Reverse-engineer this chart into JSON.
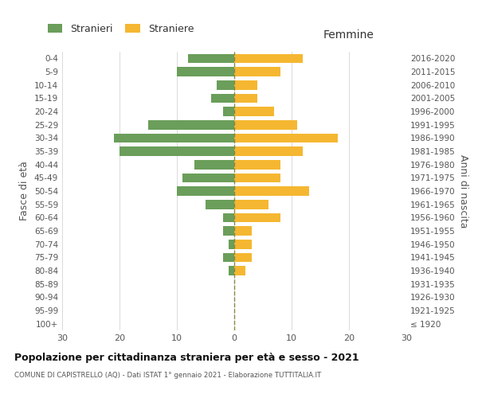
{
  "age_groups": [
    "100+",
    "95-99",
    "90-94",
    "85-89",
    "80-84",
    "75-79",
    "70-74",
    "65-69",
    "60-64",
    "55-59",
    "50-54",
    "45-49",
    "40-44",
    "35-39",
    "30-34",
    "25-29",
    "20-24",
    "15-19",
    "10-14",
    "5-9",
    "0-4"
  ],
  "birth_years": [
    "≤ 1920",
    "1921-1925",
    "1926-1930",
    "1931-1935",
    "1936-1940",
    "1941-1945",
    "1946-1950",
    "1951-1955",
    "1956-1960",
    "1961-1965",
    "1966-1970",
    "1971-1975",
    "1976-1980",
    "1981-1985",
    "1986-1990",
    "1991-1995",
    "1996-2000",
    "2001-2005",
    "2006-2010",
    "2011-2015",
    "2016-2020"
  ],
  "males": [
    0,
    0,
    0,
    0,
    1,
    2,
    1,
    2,
    2,
    5,
    10,
    9,
    7,
    20,
    21,
    15,
    2,
    4,
    3,
    10,
    8
  ],
  "females": [
    0,
    0,
    0,
    0,
    2,
    3,
    3,
    3,
    8,
    6,
    13,
    8,
    8,
    12,
    18,
    11,
    7,
    4,
    4,
    8,
    12
  ],
  "male_color": "#6a9e5a",
  "female_color": "#f5b731",
  "title": "Popolazione per cittadinanza straniera per età e sesso - 2021",
  "subtitle": "COMUNE DI CAPISTRELLO (AQ) - Dati ISTAT 1° gennaio 2021 - Elaborazione TUTTITALIA.IT",
  "xlabel_right": "Femmine",
  "ylabel_left": "Fasce di età",
  "ylabel_right": "Anni di nascita",
  "xlim": 30,
  "legend_stranieri": "Stranieri",
  "legend_straniere": "Straniere",
  "background_color": "#ffffff",
  "grid_color": "#cccccc"
}
